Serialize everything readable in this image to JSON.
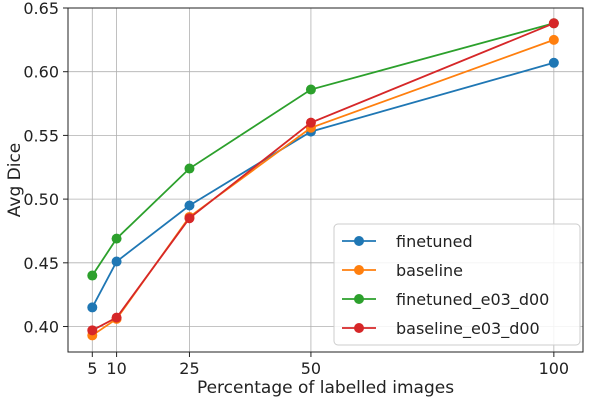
{
  "chart_data": {
    "type": "line",
    "title": "",
    "xlabel": "Percentage of labelled images",
    "ylabel": "Avg Dice",
    "xlim": [
      0,
      106
    ],
    "ylim": [
      0.38,
      0.65
    ],
    "xticks": [
      5,
      10,
      25,
      50,
      100
    ],
    "yticks": [
      0.4,
      0.45,
      0.5,
      0.55,
      0.6,
      0.65
    ],
    "grid": true,
    "legend_position": "bottom-right",
    "x": [
      5,
      10,
      25,
      50,
      100
    ],
    "series": [
      {
        "name": "finetuned",
        "color": "#1f77b4",
        "values": [
          0.415,
          0.451,
          0.495,
          0.553,
          0.607
        ]
      },
      {
        "name": "baseline",
        "color": "#ff7f0e",
        "values": [
          0.393,
          0.406,
          0.486,
          0.556,
          0.625
        ]
      },
      {
        "name": "finetuned_e03_d00",
        "color": "#2ca02c",
        "values": [
          0.44,
          0.469,
          0.524,
          0.586,
          0.638
        ]
      },
      {
        "name": "baseline_e03_d00",
        "color": "#d62728",
        "values": [
          0.397,
          0.407,
          0.485,
          0.56,
          0.638
        ]
      }
    ]
  }
}
